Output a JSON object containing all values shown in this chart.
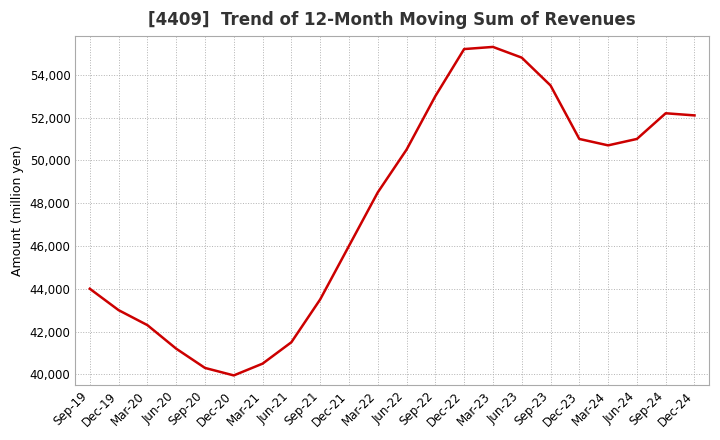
{
  "title": "[4409]  Trend of 12-Month Moving Sum of Revenues",
  "ylabel": "Amount (million yen)",
  "line_color": "#cc0000",
  "background_color": "#ffffff",
  "plot_bg_color": "#ffffff",
  "grid_color": "#aaaaaa",
  "x_labels": [
    "Sep-19",
    "Dec-19",
    "Mar-20",
    "Jun-20",
    "Sep-20",
    "Dec-20",
    "Mar-21",
    "Jun-21",
    "Sep-21",
    "Dec-21",
    "Mar-22",
    "Jun-22",
    "Sep-22",
    "Dec-22",
    "Mar-23",
    "Jun-23",
    "Sep-23",
    "Dec-23",
    "Mar-24",
    "Jun-24",
    "Sep-24",
    "Dec-24"
  ],
  "y_values": [
    44000,
    43000,
    42300,
    41200,
    40300,
    39950,
    40500,
    41500,
    43500,
    46000,
    48500,
    50500,
    53000,
    55200,
    55300,
    54800,
    53500,
    51000,
    50700,
    51000,
    52200,
    52100
  ],
  "ylim": [
    39500,
    55800
  ],
  "yticks": [
    40000,
    42000,
    44000,
    46000,
    48000,
    50000,
    52000,
    54000
  ],
  "title_fontsize": 12,
  "ylabel_fontsize": 9,
  "tick_fontsize": 8.5,
  "line_width": 1.8
}
